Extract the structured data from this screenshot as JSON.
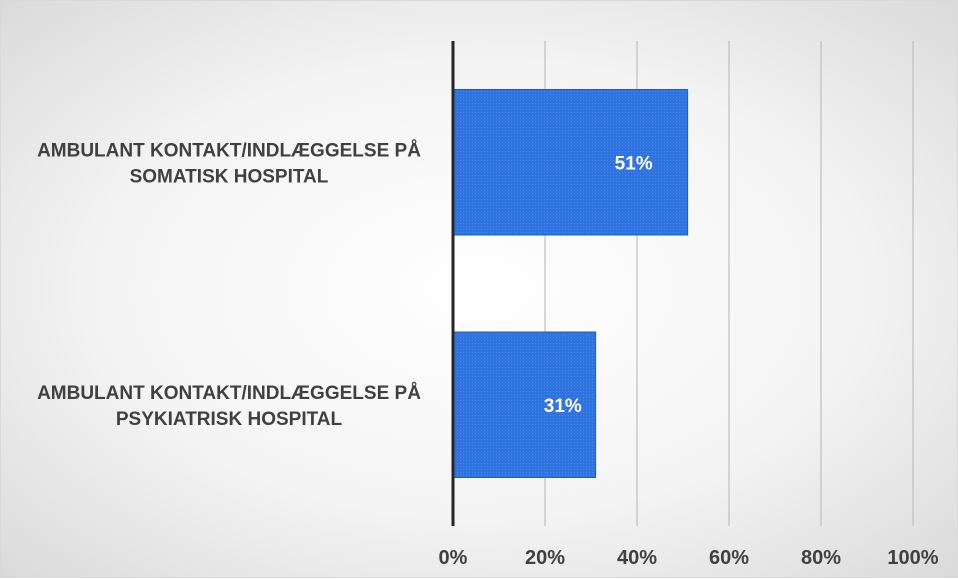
{
  "chart_data": {
    "type": "bar",
    "orientation": "horizontal",
    "categories": [
      [
        "AMBULANT KONTAKT/INDLÆGGELSE PÅ",
        "SOMATISK HOSPITAL"
      ],
      [
        "AMBULANT KONTAKT/INDLÆGGELSE PÅ",
        "PSYKIATRISK HOSPITAL"
      ]
    ],
    "values": [
      51,
      31
    ],
    "data_labels": [
      "51%",
      "31%"
    ],
    "xlim": [
      0,
      100
    ],
    "x_ticks": [
      "0%",
      "20%",
      "40%",
      "60%",
      "80%",
      "100%"
    ],
    "grid": true,
    "legend": "none",
    "colors": {
      "bar": "#2f73e0",
      "bar_border": "#1f5fc9",
      "axis": "#262626",
      "grid": "#bfbfbf",
      "text": "#404040"
    }
  }
}
